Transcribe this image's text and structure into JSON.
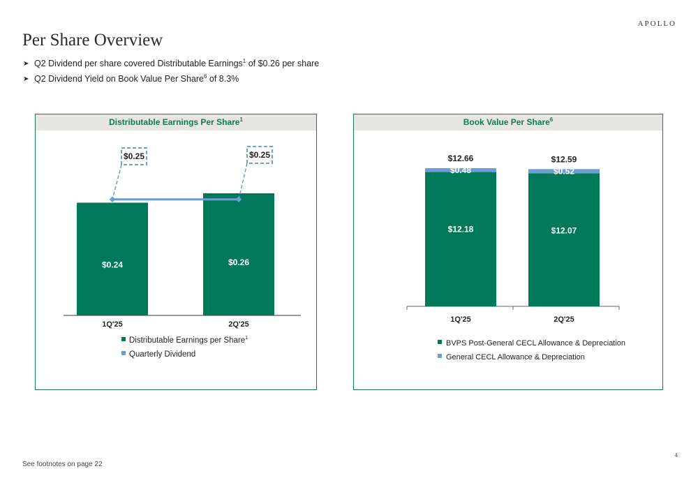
{
  "logo": "APOLLO",
  "title": "Per Share Overview",
  "bullets": [
    {
      "before": "Q2 Dividend per share covered Distributable Earnings",
      "sup": "1",
      "after": " of $0.26 per share"
    },
    {
      "before": "Q2 Dividend Yield on Book Value Per Share",
      "sup": "6",
      "after": " of 8.3%"
    }
  ],
  "footer": "See footnotes on page 22",
  "page_number": "4",
  "colors": {
    "green": "#00785a",
    "blue": "#6b9fd4",
    "panel_border": "#1a7a5e",
    "header_bg": "#e8e6e3"
  },
  "chart_data": [
    {
      "type": "bar",
      "title": "Distributable Earnings Per Share",
      "title_sup": "1",
      "categories": [
        "1Q'25",
        "2Q'25"
      ],
      "series": [
        {
          "name": "Distributable Earnings per Share",
          "name_sup": "1",
          "color": "#00785a",
          "values": [
            0.24,
            0.26
          ],
          "labels": [
            "$0.24",
            "$0.26"
          ]
        },
        {
          "name": "Quarterly Dividend",
          "color": "#6b9fd4",
          "type": "line",
          "values": [
            0.25,
            0.25
          ],
          "labels": [
            "$0.25",
            "$0.25"
          ]
        }
      ],
      "ylim": [
        0,
        0.32
      ],
      "legend": "bottom"
    },
    {
      "type": "bar",
      "stacked": true,
      "title": "Book Value Per Share",
      "title_sup": "6",
      "categories": [
        "1Q'25",
        "2Q'25"
      ],
      "series": [
        {
          "name": "BVPS Post-General CECL Allowance & Depreciation",
          "color": "#00785a",
          "values": [
            12.18,
            12.07
          ],
          "labels": [
            "$12.18",
            "$12.07"
          ]
        },
        {
          "name": "General CECL Allowance & Depreciation",
          "color": "#6b9fd4",
          "values": [
            0.48,
            0.52
          ],
          "labels": [
            "$0.48",
            "$0.52"
          ]
        }
      ],
      "totals": [
        "$12.66",
        "$12.59"
      ],
      "legend": "bottom"
    }
  ]
}
